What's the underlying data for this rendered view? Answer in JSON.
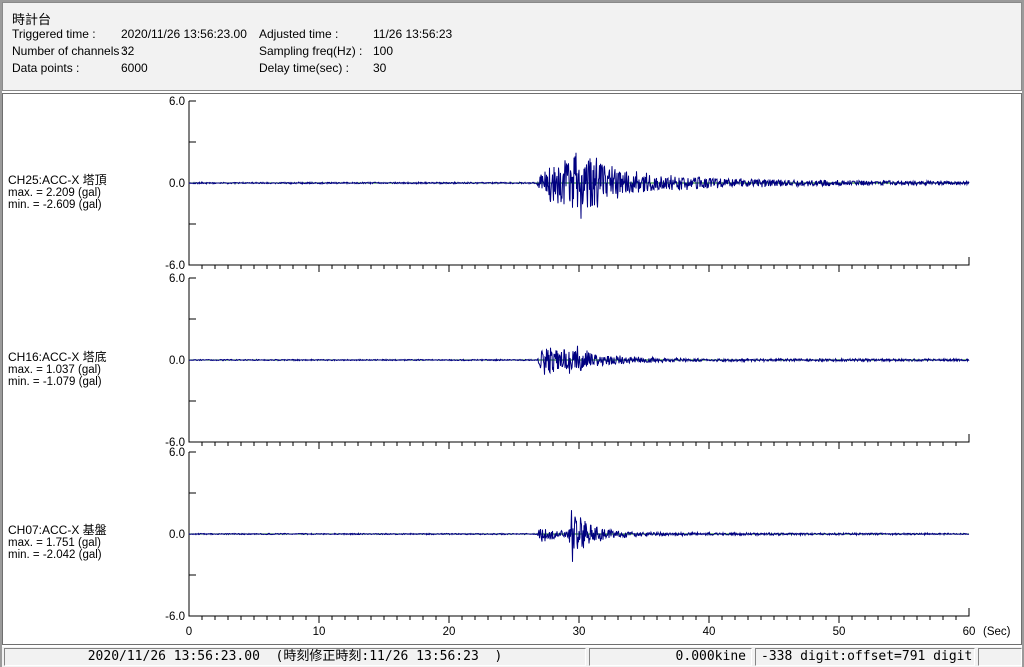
{
  "colors": {
    "waveform": "#000080",
    "zero_line": "#007a00",
    "axis": "#000000",
    "panel_bg": "#f2f2f2",
    "chart_bg": "#ffffff"
  },
  "header": {
    "title": "時計台",
    "fields": [
      {
        "label": "Triggered time :",
        "value": "2020/11/26 13:56:23.00"
      },
      {
        "label": "Adjusted time :",
        "value": "11/26 13:56:23"
      },
      {
        "label": "Number of channels :",
        "value": "32"
      },
      {
        "label": "Sampling freq(Hz) :",
        "value": "100"
      },
      {
        "label": "Data points :",
        "value": "6000"
      },
      {
        "label": "Delay time(sec) :",
        "value": "30"
      }
    ]
  },
  "chart_data": {
    "type": "line",
    "title": "",
    "xlabel": "Sec",
    "ylabel": "gal",
    "xlim": [
      0,
      60
    ],
    "ylim": [
      -6.0,
      6.0
    ],
    "grid": false,
    "x_tick_labels": [
      "0",
      "10",
      "20",
      "30",
      "40",
      "50",
      "60"
    ],
    "x_unit_label": "(Sec)",
    "y_axis_labels": [
      "6.0",
      "0.0",
      "-6.0"
    ],
    "y_minor_ticks_gal": [
      3.0,
      -3.0
    ],
    "x_minor_tick_sec": 1,
    "x_major_tick_sec": 10,
    "description": "Three seismic acceleration waveforms, quiescent until ~27 s, burst of shaking peaking near 30 s, decaying coda to 60 s",
    "charts": [
      {
        "channel": "CH25:ACC-X 塔頂",
        "max_label": "max. = 2.209 (gal)",
        "min_label": "min. = -2.609 (gal)",
        "max_gal": 2.209,
        "min_gal": -2.609,
        "seed": 101,
        "envelope": [
          [
            0,
            0.05
          ],
          [
            26.7,
            0.05
          ],
          [
            27.0,
            0.55
          ],
          [
            27.6,
            1.15
          ],
          [
            28.4,
            1.35
          ],
          [
            29.2,
            2.0
          ],
          [
            29.9,
            2.3
          ],
          [
            30.7,
            2.0
          ],
          [
            31.6,
            1.45
          ],
          [
            32.6,
            1.05
          ],
          [
            34,
            0.8
          ],
          [
            36,
            0.55
          ],
          [
            38,
            0.45
          ],
          [
            42,
            0.3
          ],
          [
            48,
            0.2
          ],
          [
            54,
            0.15
          ],
          [
            60,
            0.12
          ]
        ],
        "extremes": [
          {
            "t": 29.75,
            "gal": 2.209
          },
          {
            "t": 30.15,
            "gal": -2.609
          }
        ]
      },
      {
        "channel": "CH16:ACC-X 塔底",
        "max_label": "max. = 1.037 (gal)",
        "min_label": "min. = -1.079 (gal)",
        "max_gal": 1.037,
        "min_gal": -1.079,
        "seed": 202,
        "envelope": [
          [
            0,
            0.04
          ],
          [
            26.8,
            0.04
          ],
          [
            27.1,
            0.75
          ],
          [
            27.9,
            1.0
          ],
          [
            28.8,
            0.8
          ],
          [
            29.8,
            0.95
          ],
          [
            30.8,
            0.55
          ],
          [
            32,
            0.38
          ],
          [
            33.5,
            0.25
          ],
          [
            35.5,
            0.17
          ],
          [
            38,
            0.12
          ],
          [
            42,
            0.1
          ],
          [
            50,
            0.08
          ],
          [
            60,
            0.07
          ]
        ],
        "extremes": [
          {
            "t": 29.9,
            "gal": 1.037
          },
          {
            "t": 27.35,
            "gal": -1.079
          }
        ]
      },
      {
        "channel": "CH07:ACC-X 基盤",
        "max_label": "max. = 1.751 (gal)",
        "min_label": "min. = -2.042 (gal)",
        "max_gal": 1.751,
        "min_gal": -2.042,
        "seed": 303,
        "envelope": [
          [
            0,
            0.04
          ],
          [
            26.8,
            0.04
          ],
          [
            27.0,
            0.5
          ],
          [
            27.7,
            0.42
          ],
          [
            28.3,
            0.22
          ],
          [
            29.1,
            0.3
          ],
          [
            29.45,
            1.7
          ],
          [
            29.9,
            1.2
          ],
          [
            30.5,
            0.8
          ],
          [
            31.2,
            0.55
          ],
          [
            32.2,
            0.35
          ],
          [
            33.5,
            0.22
          ],
          [
            35,
            0.14
          ],
          [
            38,
            0.1
          ],
          [
            45,
            0.07
          ],
          [
            60,
            0.05
          ]
        ],
        "extremes": [
          {
            "t": 29.5,
            "gal": -2.042
          },
          {
            "t": 29.42,
            "gal": 1.751
          }
        ]
      }
    ]
  },
  "status_bar": {
    "segments": [
      {
        "text": "2020/11/26 13:56:23.00  (時刻修正時刻:11/26 13:56:23  )"
      },
      {
        "text": "0.000kine"
      },
      {
        "text": "-338 digit:offset=791 digit"
      },
      {
        "text": ""
      }
    ]
  }
}
